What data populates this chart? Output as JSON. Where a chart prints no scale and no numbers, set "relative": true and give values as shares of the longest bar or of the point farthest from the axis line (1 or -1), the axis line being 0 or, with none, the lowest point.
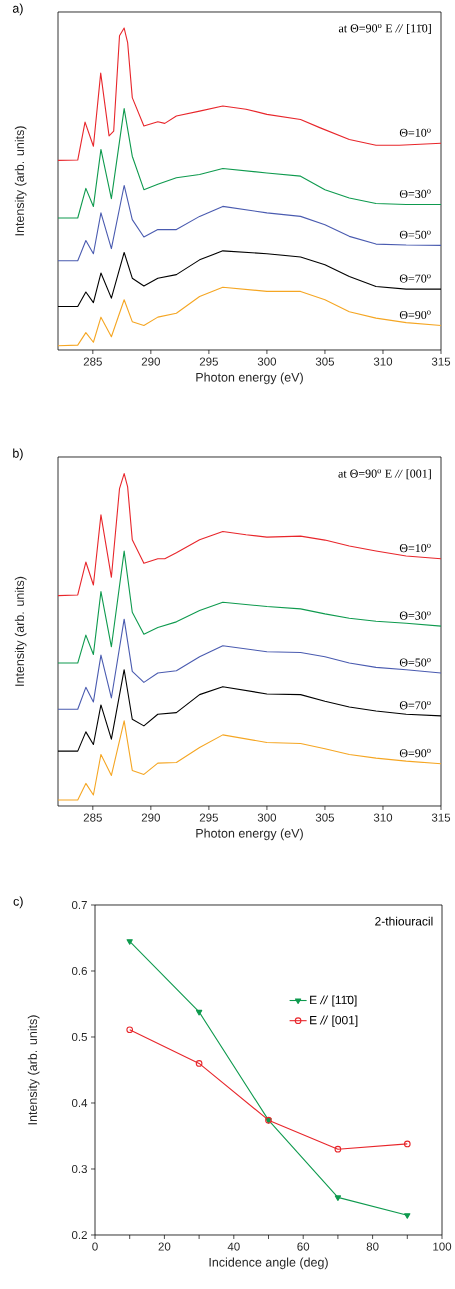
{
  "chart_data": [
    {
      "type": "line",
      "title": "a)",
      "xlabel": "Photon energy (eV)",
      "ylabel": "Intensity (arb. units)",
      "relative": true,
      "xlim": [
        282,
        315
      ],
      "xticks": [
        285,
        290,
        295,
        300,
        305,
        310,
        315
      ],
      "legend": false,
      "annotations": [
        "at Θ=90$^{o}$ E *//* [11̄0]"
      ],
      "series": [
        {
          "name": "Θ=10$^{o}$",
          "color": "#e8262b",
          "x": [
            282,
            283.7,
            284.33,
            285.05,
            285.68,
            286.4,
            286.8,
            287.3,
            287.7,
            288.0,
            288.4,
            289.4,
            290.6,
            291.2,
            292.2,
            294.2,
            296.2,
            298.2,
            300,
            302.9,
            304.6,
            307.1,
            309.4,
            311.4,
            315
          ],
          "values": [
            0.589,
            0.59,
            0.708,
            0.633,
            0.86,
            0.665,
            0.68,
            0.976,
            1.0,
            0.955,
            0.784,
            0.696,
            0.709,
            0.704,
            0.727,
            0.742,
            0.758,
            0.748,
            0.732,
            0.716,
            0.69,
            0.654,
            0.636,
            0.636,
            0.642
          ]
        },
        {
          "name": "Θ=30$^{o}$",
          "color": "#0e9a4e",
          "x": [
            282,
            283.7,
            284.4,
            285.05,
            285.7,
            286.6,
            287.7,
            288.4,
            289.4,
            290.6,
            292.2,
            294.2,
            296.2,
            300,
            302.9,
            305,
            307.1,
            309.4,
            312,
            315
          ],
          "values": [
            0.41,
            0.41,
            0.502,
            0.446,
            0.623,
            0.47,
            0.75,
            0.602,
            0.498,
            0.515,
            0.535,
            0.545,
            0.564,
            0.55,
            0.54,
            0.498,
            0.472,
            0.455,
            0.452,
            0.452
          ]
        },
        {
          "name": "Θ=50$^{o}$",
          "color": "#4a5bb0",
          "x": [
            282,
            283.7,
            284.4,
            285.05,
            285.7,
            286.6,
            287.7,
            288.4,
            289.4,
            290.6,
            292.2,
            294.2,
            296.2,
            300,
            302.9,
            305,
            307.1,
            309.4,
            312,
            315
          ],
          "values": [
            0.277,
            0.277,
            0.34,
            0.299,
            0.426,
            0.315,
            0.511,
            0.405,
            0.351,
            0.374,
            0.374,
            0.415,
            0.446,
            0.426,
            0.415,
            0.389,
            0.353,
            0.329,
            0.326,
            0.325
          ]
        },
        {
          "name": "Θ=70$^{o}$",
          "color": "#000000",
          "x": [
            282,
            283.7,
            284.4,
            285.05,
            285.7,
            286.6,
            287.7,
            288.4,
            289.4,
            290.6,
            292.2,
            294.2,
            296.2,
            300,
            302.9,
            305,
            307.1,
            309.4,
            312,
            315
          ],
          "values": [
            0.135,
            0.135,
            0.18,
            0.147,
            0.239,
            0.161,
            0.303,
            0.223,
            0.199,
            0.223,
            0.234,
            0.28,
            0.308,
            0.299,
            0.289,
            0.265,
            0.228,
            0.197,
            0.189,
            0.189
          ]
        },
        {
          "name": "Θ=90$^{o}$",
          "color": "#f5a623",
          "x": [
            282,
            283.7,
            284.4,
            285.05,
            285.7,
            286.6,
            287.7,
            288.4,
            289.4,
            290.6,
            292.2,
            294.2,
            296.2,
            300,
            302.9,
            305,
            307.1,
            309.4,
            312,
            315
          ],
          "values": [
            0.013,
            0.015,
            0.054,
            0.024,
            0.102,
            0.041,
            0.156,
            0.088,
            0.076,
            0.102,
            0.114,
            0.166,
            0.195,
            0.182,
            0.182,
            0.156,
            0.119,
            0.099,
            0.085,
            0.076
          ]
        }
      ]
    },
    {
      "type": "line",
      "title": "b)",
      "xlabel": "Photon energy (eV)",
      "ylabel": "Intensity (arb. units)",
      "relative": true,
      "xlim": [
        282,
        315
      ],
      "xticks": [
        285,
        290,
        295,
        300,
        305,
        310,
        315
      ],
      "legend": false,
      "annotations": [
        "at Θ=90$^{o}$ E *//* [001]"
      ],
      "series": [
        {
          "name": "Θ=10$^{o}$",
          "color": "#e8262b",
          "x": [
            282,
            283.7,
            284.4,
            285.05,
            285.7,
            286.6,
            287.3,
            287.7,
            288.0,
            288.4,
            289.4,
            290.6,
            291.2,
            292.2,
            294.2,
            296.2,
            298.2,
            300,
            302.9,
            305,
            307.1,
            309.4,
            312,
            315
          ],
          "values": [
            0.633,
            0.635,
            0.734,
            0.665,
            0.876,
            0.688,
            0.955,
            1.0,
            0.96,
            0.801,
            0.73,
            0.744,
            0.744,
            0.762,
            0.801,
            0.826,
            0.816,
            0.809,
            0.812,
            0.8,
            0.782,
            0.767,
            0.752,
            0.744
          ]
        },
        {
          "name": "Θ=30$^{o}$",
          "color": "#0e9a4e",
          "x": [
            282,
            283.7,
            284.4,
            285.05,
            285.7,
            286.6,
            287.7,
            288.4,
            289.4,
            290.6,
            292.2,
            294.2,
            296.2,
            300,
            302.9,
            305,
            307.1,
            309.4,
            312,
            315
          ],
          "values": [
            0.43,
            0.43,
            0.514,
            0.456,
            0.645,
            0.479,
            0.767,
            0.583,
            0.517,
            0.537,
            0.554,
            0.588,
            0.613,
            0.6,
            0.593,
            0.578,
            0.565,
            0.556,
            0.55,
            0.541
          ]
        },
        {
          "name": "Θ=50$^{o}$",
          "color": "#4a5bb0",
          "x": [
            282,
            283.7,
            284.4,
            285.05,
            285.7,
            286.6,
            287.7,
            288.4,
            289.4,
            290.6,
            292.2,
            294.2,
            296.2,
            300,
            302.9,
            305,
            307.1,
            309.4,
            312,
            315
          ],
          "values": [
            0.291,
            0.291,
            0.357,
            0.313,
            0.454,
            0.325,
            0.562,
            0.405,
            0.372,
            0.4,
            0.407,
            0.449,
            0.482,
            0.464,
            0.462,
            0.449,
            0.43,
            0.417,
            0.41,
            0.4
          ]
        },
        {
          "name": "Θ=70$^{o}$",
          "color": "#000000",
          "x": [
            282,
            283.7,
            284.4,
            285.05,
            285.7,
            286.6,
            287.7,
            288.4,
            289.4,
            290.6,
            292.2,
            294.2,
            296.2,
            300,
            302.9,
            305,
            307.1,
            309.4,
            312,
            315
          ],
          "values": [
            0.165,
            0.165,
            0.223,
            0.185,
            0.304,
            0.201,
            0.41,
            0.261,
            0.241,
            0.276,
            0.281,
            0.335,
            0.359,
            0.337,
            0.335,
            0.315,
            0.298,
            0.286,
            0.276,
            0.271
          ]
        },
        {
          "name": "Θ=90$^{o}$",
          "color": "#f5a623",
          "x": [
            282,
            283.7,
            284.4,
            285.05,
            285.7,
            286.6,
            287.7,
            288.4,
            289.4,
            290.6,
            292.2,
            294.2,
            296.2,
            300,
            302.9,
            305,
            307.1,
            309.4,
            312,
            315
          ],
          "values": [
            0.018,
            0.018,
            0.068,
            0.033,
            0.155,
            0.092,
            0.256,
            0.107,
            0.095,
            0.129,
            0.131,
            0.176,
            0.214,
            0.191,
            0.188,
            0.172,
            0.155,
            0.144,
            0.135,
            0.127
          ]
        }
      ]
    },
    {
      "type": "line",
      "title": "c)",
      "xlabel": "Incidence angle (deg)",
      "ylabel": "Intensity (arb. units)",
      "xlim": [
        0,
        100
      ],
      "ylim": [
        0.2,
        0.7
      ],
      "xticks": [
        0,
        {
          "value": 10,
          "label": null
        },
        20,
        {
          "value": 30,
          "label": null
        },
        40,
        {
          "value": 50,
          "label": null
        },
        60,
        {
          "value": 70,
          "label": null
        },
        80,
        {
          "value": 90,
          "label": null
        },
        100
      ],
      "yticks": [
        0.2,
        0.3,
        0.4,
        0.5,
        0.6,
        0.7
      ],
      "legend": "right",
      "annotations": [
        "2-thiouracil"
      ],
      "x": [
        10,
        30,
        50,
        70,
        90
      ],
      "series": [
        {
          "name": "E *//* [11̄0]",
          "color": "#0e9a4e",
          "marker": "triangle",
          "values": [
            0.645,
            0.538,
            0.374,
            0.257,
            0.23
          ]
        },
        {
          "name": "E *//* [001]",
          "color": "#e8262b",
          "marker": "circle",
          "values": [
            0.511,
            0.46,
            0.374,
            0.33,
            0.338
          ]
        }
      ]
    }
  ]
}
